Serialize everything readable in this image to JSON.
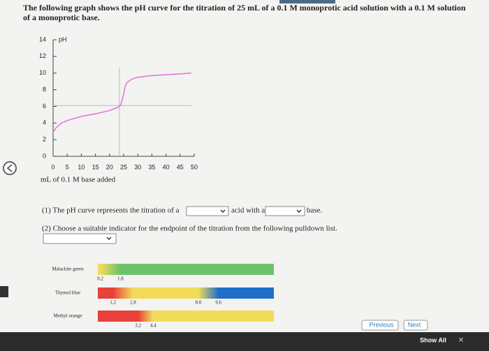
{
  "question": {
    "lines": [
      "The following graph shows the pH curve for the titration of 25 mL of a 0.1 M monoprotic acid solution with a 0.1 M solution",
      "of a monoprotic base."
    ]
  },
  "chart_data": {
    "type": "line",
    "y_label": "pH",
    "x_label": "mL of 0.1 M base added",
    "x": [
      0,
      1,
      3,
      5,
      10,
      15,
      20,
      23,
      24,
      24.5,
      25,
      25.5,
      26,
      28,
      30,
      35,
      40,
      45,
      49
    ],
    "values": [
      2.9,
      3.4,
      4.0,
      4.3,
      4.8,
      5.1,
      5.5,
      5.9,
      6.2,
      6.8,
      7.5,
      8.3,
      8.8,
      9.3,
      9.5,
      9.7,
      9.8,
      9.9,
      10.0
    ],
    "color": "#e27ad8",
    "xlim": [
      0,
      50
    ],
    "xticks": [
      0,
      5,
      10,
      15,
      20,
      25,
      30,
      35,
      40,
      45,
      50
    ],
    "ylim": [
      0,
      14
    ],
    "yticks": [
      0,
      2,
      4,
      6,
      8,
      10,
      12,
      14
    ],
    "vlines": [
      23.5
    ],
    "hlines": [
      6.1
    ]
  },
  "parts": {
    "part1": [
      "(1) The pH curve represents the titration of a",
      "acid with a",
      "base."
    ],
    "part2": "(2) Choose a suitable indicator for the endpoint of the titration from the following pulldown list."
  },
  "indicators": {
    "range": [
      0,
      14
    ],
    "items": [
      {
        "name": "Malachite green",
        "transitions": [
          {
            "low": 0.2,
            "high": 1.8,
            "from": "#f1dc5a",
            "to": "#6cc36c"
          }
        ]
      },
      {
        "name": "Thymol blue",
        "transitions": [
          {
            "low": 1.2,
            "high": 2.8,
            "from": "#e8403a",
            "to": "#f1dc5a"
          },
          {
            "low": {
              "value": 8,
              "label": "8.0"
            },
            "high": 9.6,
            "from": "#f1dc5a",
            "to": "#1f6fc8"
          }
        ]
      },
      {
        "name": "Methyl orange",
        "transitions": [
          {
            "low": 3.2,
            "high": 4.4,
            "from": "#e8403a",
            "to": "#f1dc5a"
          }
        ]
      }
    ]
  },
  "buttons": {
    "previous": "Previous",
    "next": "Next",
    "show_all": "Show All"
  }
}
